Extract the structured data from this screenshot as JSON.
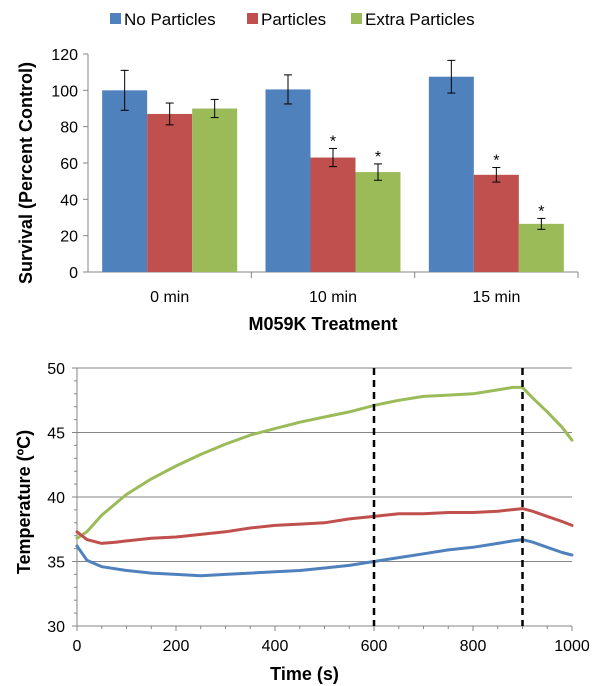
{
  "chart_data": [
    {
      "type": "bar",
      "title": "",
      "xlabel": "M059K Treatment",
      "ylabel": "Survival (Percent Control)",
      "ylim": [
        0,
        120
      ],
      "yticks": [
        "0",
        "20",
        "40",
        "60",
        "80",
        "100",
        "120"
      ],
      "categories": [
        "0 min",
        "10 min",
        "15 min"
      ],
      "legend_position": "top",
      "series": [
        {
          "name": "No Particles",
          "color": "#4F81BD",
          "values": [
            100,
            100.5,
            107.5
          ],
          "errors": [
            11,
            8,
            9
          ],
          "significant": [
            false,
            false,
            false
          ]
        },
        {
          "name": "Particles",
          "color": "#C0504D",
          "values": [
            87,
            63,
            53.5
          ],
          "errors": [
            6,
            5,
            4
          ],
          "significant": [
            false,
            true,
            true
          ]
        },
        {
          "name": "Extra Particles",
          "color": "#9BBB59",
          "values": [
            90,
            55,
            26.5
          ],
          "errors": [
            5,
            4.5,
            3
          ],
          "significant": [
            false,
            true,
            true
          ]
        }
      ],
      "annotation_symbol": "*"
    },
    {
      "type": "line",
      "title": "",
      "xlabel": "Time (s)",
      "ylabel": "Temperature (ºC)",
      "xlim": [
        0,
        1000
      ],
      "ylim": [
        30,
        50
      ],
      "xticks": [
        "0",
        "200",
        "400",
        "600",
        "800",
        "1000"
      ],
      "yticks": [
        "30",
        "35",
        "40",
        "45",
        "50"
      ],
      "grid": "horizontal",
      "vlines": [
        600,
        900
      ],
      "series": [
        {
          "color": "#9BBB59",
          "x": [
            0,
            20,
            50,
            100,
            150,
            200,
            250,
            300,
            350,
            400,
            450,
            500,
            550,
            600,
            650,
            700,
            750,
            800,
            850,
            880,
            900,
            920,
            950,
            980,
            1000
          ],
          "y": [
            36.8,
            37.3,
            38.6,
            40.2,
            41.4,
            42.4,
            43.3,
            44.1,
            44.8,
            45.3,
            45.8,
            46.2,
            46.6,
            47.1,
            47.5,
            47.8,
            47.9,
            48.0,
            48.3,
            48.5,
            48.5,
            47.7,
            46.6,
            45.4,
            44.4
          ]
        },
        {
          "color": "#C0504D",
          "x": [
            0,
            20,
            50,
            80,
            100,
            150,
            200,
            250,
            300,
            350,
            400,
            450,
            500,
            550,
            600,
            650,
            700,
            750,
            800,
            850,
            900,
            920,
            950,
            980,
            1000
          ],
          "y": [
            37.3,
            36.7,
            36.4,
            36.5,
            36.6,
            36.8,
            36.9,
            37.1,
            37.3,
            37.6,
            37.8,
            37.9,
            38.0,
            38.3,
            38.5,
            38.7,
            38.7,
            38.8,
            38.8,
            38.9,
            39.1,
            38.9,
            38.5,
            38.1,
            37.8
          ]
        },
        {
          "color": "#4F81BD",
          "x": [
            0,
            20,
            50,
            100,
            150,
            200,
            250,
            300,
            350,
            400,
            450,
            500,
            550,
            600,
            650,
            700,
            750,
            800,
            850,
            880,
            900,
            920,
            950,
            980,
            1000
          ],
          "y": [
            36.2,
            35.1,
            34.6,
            34.3,
            34.1,
            34.0,
            33.9,
            34.0,
            34.1,
            34.2,
            34.3,
            34.5,
            34.7,
            35.0,
            35.3,
            35.6,
            35.9,
            36.1,
            36.4,
            36.6,
            36.7,
            36.5,
            36.1,
            35.7,
            35.5
          ]
        }
      ]
    }
  ]
}
